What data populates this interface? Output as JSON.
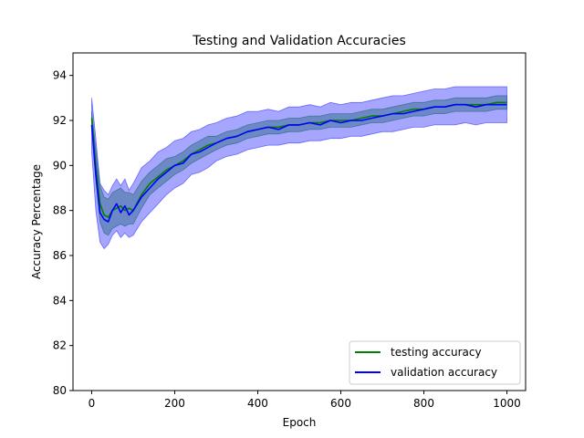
{
  "chart_data": {
    "type": "line",
    "title": "Testing and Validation Accuracies",
    "xlabel": "Epoch",
    "ylabel": "Accuracy Percentage",
    "xlim": [
      -45,
      1045
    ],
    "ylim": [
      80,
      95
    ],
    "xticks": [
      0,
      200,
      400,
      600,
      800,
      1000
    ],
    "yticks": [
      80,
      82,
      84,
      86,
      88,
      90,
      92,
      94
    ],
    "legend_position": "lower right",
    "grid": false,
    "series": [
      {
        "name": "testing accuracy",
        "color": "#008000",
        "band_color": "#008000",
        "band_opacity": 0.35,
        "x": [
          0,
          10,
          20,
          30,
          40,
          50,
          60,
          70,
          80,
          90,
          100,
          120,
          140,
          160,
          180,
          200,
          220,
          240,
          260,
          280,
          300,
          325,
          350,
          375,
          400,
          425,
          450,
          475,
          500,
          525,
          550,
          575,
          600,
          625,
          650,
          675,
          700,
          725,
          750,
          775,
          800,
          825,
          850,
          875,
          900,
          925,
          950,
          975,
          1000
        ],
        "y": [
          92.1,
          90.0,
          88.3,
          87.8,
          87.7,
          88.0,
          88.1,
          88.2,
          88.0,
          88.1,
          88.0,
          88.7,
          89.2,
          89.5,
          89.8,
          90.0,
          90.2,
          90.5,
          90.7,
          90.9,
          91.0,
          91.2,
          91.3,
          91.5,
          91.6,
          91.7,
          91.7,
          91.8,
          91.8,
          91.9,
          91.9,
          92.0,
          92.0,
          92.0,
          92.1,
          92.2,
          92.2,
          92.3,
          92.4,
          92.5,
          92.5,
          92.6,
          92.6,
          92.7,
          92.7,
          92.7,
          92.7,
          92.8,
          92.8
        ],
        "lower": [
          91.8,
          89.3,
          87.5,
          87.0,
          86.9,
          87.2,
          87.3,
          87.4,
          87.3,
          87.4,
          87.4,
          88.1,
          88.7,
          89.0,
          89.3,
          89.6,
          89.8,
          90.1,
          90.3,
          90.5,
          90.7,
          90.9,
          91.0,
          91.2,
          91.3,
          91.4,
          91.4,
          91.5,
          91.5,
          91.6,
          91.6,
          91.7,
          91.7,
          91.7,
          91.8,
          91.9,
          91.9,
          92.0,
          92.1,
          92.2,
          92.2,
          92.3,
          92.3,
          92.4,
          92.4,
          92.4,
          92.4,
          92.5,
          92.5
        ],
        "upper": [
          92.4,
          90.7,
          89.1,
          88.6,
          88.5,
          88.8,
          88.9,
          89.0,
          88.8,
          88.8,
          88.7,
          89.3,
          89.7,
          90.0,
          90.3,
          90.4,
          90.6,
          90.9,
          91.1,
          91.3,
          91.3,
          91.5,
          91.6,
          91.8,
          91.9,
          92.0,
          92.0,
          92.1,
          92.1,
          92.2,
          92.2,
          92.3,
          92.3,
          92.3,
          92.4,
          92.5,
          92.5,
          92.6,
          92.7,
          92.8,
          92.8,
          92.9,
          92.9,
          93.0,
          93.0,
          93.0,
          93.0,
          93.1,
          93.1
        ]
      },
      {
        "name": "validation accuracy",
        "color": "#0000ff",
        "band_color": "#0000ff",
        "band_opacity": 0.35,
        "x": [
          0,
          10,
          20,
          30,
          40,
          50,
          60,
          70,
          80,
          90,
          100,
          120,
          140,
          160,
          180,
          200,
          220,
          240,
          260,
          280,
          300,
          325,
          350,
          375,
          400,
          425,
          450,
          475,
          500,
          525,
          550,
          575,
          600,
          625,
          650,
          675,
          700,
          725,
          750,
          775,
          800,
          825,
          850,
          875,
          900,
          925,
          950,
          975,
          1000
        ],
        "y": [
          91.8,
          89.6,
          87.9,
          87.6,
          87.5,
          88.0,
          88.3,
          87.9,
          88.2,
          87.8,
          88.0,
          88.6,
          89.0,
          89.4,
          89.7,
          90.0,
          90.1,
          90.5,
          90.6,
          90.8,
          91.0,
          91.2,
          91.3,
          91.5,
          91.6,
          91.7,
          91.6,
          91.8,
          91.8,
          91.9,
          91.8,
          92.0,
          91.9,
          92.0,
          92.0,
          92.1,
          92.2,
          92.3,
          92.3,
          92.4,
          92.5,
          92.6,
          92.6,
          92.7,
          92.7,
          92.6,
          92.7,
          92.7,
          92.7
        ],
        "lower": [
          90.6,
          88.0,
          86.6,
          86.3,
          86.5,
          86.9,
          87.1,
          86.8,
          87.0,
          86.8,
          86.9,
          87.5,
          87.9,
          88.3,
          88.7,
          89.0,
          89.2,
          89.6,
          89.7,
          89.9,
          90.2,
          90.4,
          90.5,
          90.7,
          90.8,
          90.9,
          90.9,
          91.0,
          91.0,
          91.1,
          91.1,
          91.2,
          91.2,
          91.3,
          91.3,
          91.4,
          91.5,
          91.5,
          91.6,
          91.7,
          91.7,
          91.8,
          91.8,
          91.8,
          91.9,
          91.8,
          91.9,
          91.9,
          91.9
        ],
        "upper": [
          93.0,
          91.2,
          89.2,
          88.9,
          88.7,
          89.1,
          89.4,
          89.1,
          89.4,
          88.9,
          89.2,
          89.9,
          90.2,
          90.6,
          90.8,
          91.1,
          91.2,
          91.5,
          91.6,
          91.8,
          91.9,
          92.1,
          92.2,
          92.4,
          92.4,
          92.5,
          92.4,
          92.6,
          92.6,
          92.7,
          92.6,
          92.8,
          92.7,
          92.8,
          92.8,
          92.9,
          93.0,
          93.1,
          93.1,
          93.2,
          93.3,
          93.4,
          93.4,
          93.5,
          93.5,
          93.5,
          93.5,
          93.5,
          93.5
        ]
      }
    ]
  }
}
